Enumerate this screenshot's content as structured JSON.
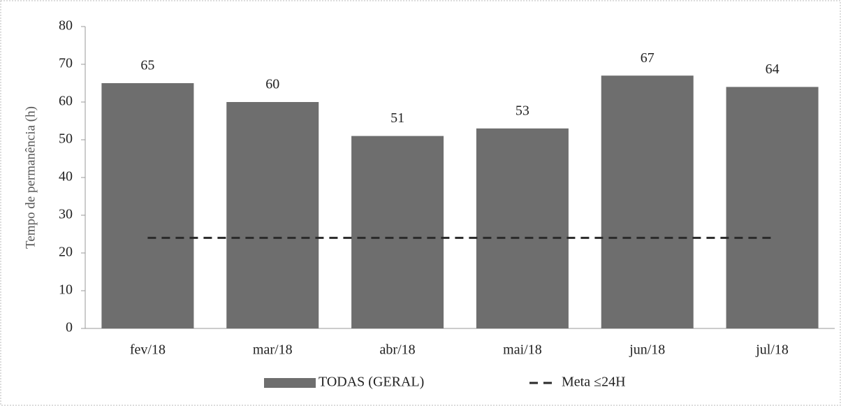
{
  "chart_data": {
    "type": "bar",
    "y_label": "Tempo de permanência (h)",
    "categories": [
      "fev/18",
      "mar/18",
      "abr/18",
      "mai/18",
      "jun/18",
      "jul/18"
    ],
    "series": [
      {
        "name": "TODAS (GERAL)",
        "type": "bar",
        "color": "#6e6e6e",
        "values": [
          65,
          60,
          51,
          53,
          67,
          64
        ]
      },
      {
        "name": "Meta ≤24H",
        "type": "line",
        "color": "#2a2a2a",
        "dashed": true,
        "values": [
          24,
          24,
          24,
          24,
          24,
          24
        ]
      }
    ],
    "ylim": [
      0,
      80
    ],
    "yticks": [
      0,
      10,
      20,
      30,
      40,
      50,
      60,
      70,
      80
    ],
    "grid": false,
    "legend": "bottom"
  }
}
